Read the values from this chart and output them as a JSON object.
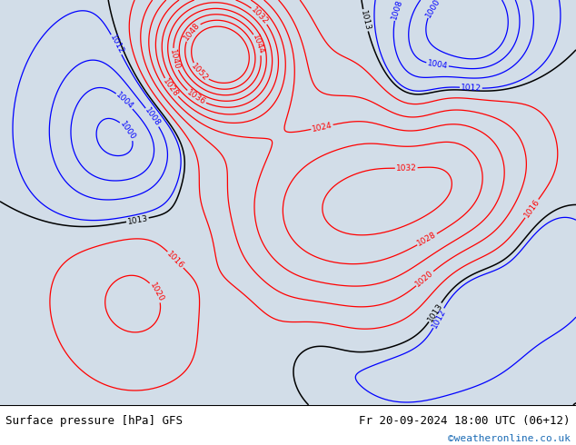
{
  "title_left": "Surface pressure [hPa] GFS",
  "title_right": "Fr 20-09-2024 18:00 UTC (06+12)",
  "copyright": "©weatheronline.co.uk",
  "sea_color": "#d2dde8",
  "land_color": "#c8e6b0",
  "mountain_color": "#b0b0a0",
  "text_color": "#000000",
  "copyright_color": "#1a6bb5",
  "font_size_bottom": 9,
  "font_size_copyright": 8,
  "lon_min": -40,
  "lon_max": 55,
  "lat_min": 25,
  "lat_max": 73,
  "levels_red": [
    1016,
    1020,
    1024,
    1028,
    1032,
    1036,
    1040,
    1044,
    1048,
    1052
  ],
  "levels_blue": [
    1000,
    1004,
    1008,
    1012
  ],
  "levels_black": [
    1013
  ]
}
